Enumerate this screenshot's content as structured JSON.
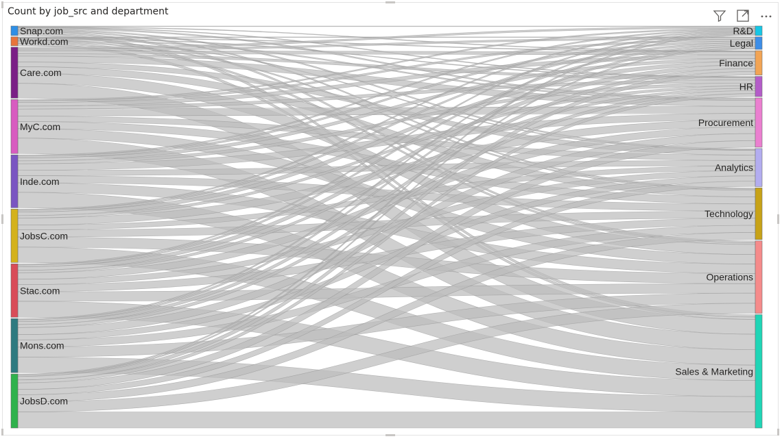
{
  "visual": {
    "title": "Count by job_src and department",
    "icons": [
      "filter-icon",
      "focus-mode-icon",
      "more-options-icon"
    ]
  },
  "chart_data": {
    "type": "sankey",
    "title": "Count by job_src and department",
    "link_color": "#bdbdbd",
    "sources": [
      {
        "name": "Snap.com",
        "color": "#2e8fe6"
      },
      {
        "name": "Workd.com",
        "color": "#e8743b"
      },
      {
        "name": "Care.com",
        "color": "#7b1f86"
      },
      {
        "name": "MyC.com",
        "color": "#d85cc0"
      },
      {
        "name": "Inde.com",
        "color": "#7a55c2"
      },
      {
        "name": "JobsC.com",
        "color": "#d4b21c"
      },
      {
        "name": "Stac.com",
        "color": "#d94c58"
      },
      {
        "name": "Mons.com",
        "color": "#2e7a80"
      },
      {
        "name": "JobsD.com",
        "color": "#2fb24c"
      }
    ],
    "targets": [
      {
        "name": "R&D",
        "color": "#16c7e6"
      },
      {
        "name": "Legal",
        "color": "#3d8ee8"
      },
      {
        "name": "Finance",
        "color": "#f2a454"
      },
      {
        "name": "HR",
        "color": "#b45cc9"
      },
      {
        "name": "Procurement",
        "color": "#eb7fd0"
      },
      {
        "name": "Analytics",
        "color": "#b3adf0"
      },
      {
        "name": "Technology",
        "color": "#c7a217"
      },
      {
        "name": "Operations",
        "color": "#f58b8b"
      },
      {
        "name": "Sales & Marketing",
        "color": "#1fd5b6"
      }
    ],
    "links": [
      {
        "source": "Snap.com",
        "values": [
          1,
          0,
          1,
          1,
          2,
          2,
          2,
          3,
          4
        ]
      },
      {
        "source": "Workd.com",
        "values": [
          0,
          1,
          1,
          1,
          2,
          1,
          2,
          3,
          4
        ]
      },
      {
        "source": "Care.com",
        "values": [
          3,
          3,
          5,
          4,
          10,
          8,
          11,
          17,
          25
        ]
      },
      {
        "source": "MyC.com",
        "values": [
          2,
          3,
          6,
          5,
          12,
          9,
          12,
          16,
          26
        ]
      },
      {
        "source": "Inde.com",
        "values": [
          2,
          3,
          5,
          5,
          11,
          9,
          12,
          16,
          26
        ]
      },
      {
        "source": "JobsC.com",
        "values": [
          2,
          3,
          6,
          4,
          12,
          8,
          12,
          17,
          26
        ]
      },
      {
        "source": "Stac.com",
        "values": [
          2,
          3,
          6,
          4,
          11,
          9,
          12,
          16,
          27
        ]
      },
      {
        "source": "Mons.com",
        "values": [
          2,
          3,
          5,
          5,
          12,
          9,
          12,
          17,
          26
        ]
      },
      {
        "source": "JobsD.com",
        "values": [
          2,
          2,
          6,
          5,
          11,
          9,
          12,
          17,
          27
        ]
      }
    ]
  }
}
